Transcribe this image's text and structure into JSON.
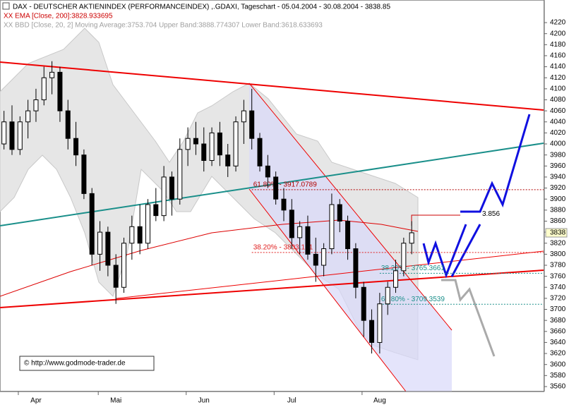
{
  "chart_data": {
    "type": "candlestick",
    "title": "DAX - DEUTSCHER AKTIENINDEX (PERFORMANCEINDEX) ,.GDAXI, Tageschart - 05.04.2004 - 30.08.2004 - 3838.85",
    "indicator_labels": [
      {
        "text": "XX EMA [Close, 200]:3828.933695",
        "color": "#cc0000"
      },
      {
        "text": "XX BBD [Close, 20, 2] Moving Average:3753.704 Upper Band:3888.774307 Lower Band:3618.633693",
        "color": "#a0a0a0"
      }
    ],
    "copyright": "© http://www.godmode-trader.de",
    "categories": [
      null,
      null,
      null,
      null,
      "Apr",
      null,
      null,
      null,
      null,
      null,
      null,
      null,
      null,
      null,
      "Mai",
      null,
      null,
      null,
      null,
      null,
      null,
      null,
      null,
      null,
      null,
      "Jun",
      null,
      null,
      null,
      null,
      null,
      null,
      null,
      null,
      null,
      null,
      "Jul",
      null,
      null,
      null,
      null,
      null,
      null,
      null,
      null,
      null,
      null,
      "Aug",
      null,
      null,
      null,
      null,
      null,
      null,
      null,
      null,
      null,
      null,
      null,
      null,
      null,
      null,
      null,
      null,
      null,
      null,
      null,
      null
    ],
    "series": [
      {
        "name": "DAX",
        "values": [
          [
            4000,
            4060,
            3990,
            4040
          ],
          [
            4040,
            4070,
            3980,
            3990
          ],
          [
            3990,
            4050,
            3980,
            4040
          ],
          [
            4040,
            4080,
            4010,
            4060
          ],
          [
            4060,
            4100,
            4040,
            4080
          ],
          [
            4080,
            4140,
            4070,
            4120
          ],
          [
            4120,
            4150,
            4090,
            4130
          ],
          [
            4130,
            4140,
            4040,
            4060
          ],
          [
            4060,
            4080,
            3990,
            4010
          ],
          [
            4010,
            4040,
            3960,
            3980
          ],
          [
            3980,
            3990,
            3900,
            3910
          ],
          [
            3910,
            3920,
            3780,
            3800
          ],
          [
            3800,
            3860,
            3770,
            3840
          ],
          [
            3840,
            3850,
            3760,
            3780
          ],
          [
            3780,
            3800,
            3710,
            3740
          ],
          [
            3740,
            3830,
            3730,
            3820
          ],
          [
            3820,
            3870,
            3790,
            3850
          ],
          [
            3850,
            3890,
            3800,
            3820
          ],
          [
            3820,
            3900,
            3810,
            3890
          ],
          [
            3890,
            3920,
            3860,
            3870
          ],
          [
            3870,
            3960,
            3860,
            3940
          ],
          [
            3940,
            3950,
            3870,
            3900
          ],
          [
            3900,
            4010,
            3890,
            3990
          ],
          [
            3990,
            4030,
            3960,
            4010
          ],
          [
            4010,
            4040,
            3980,
            4000
          ],
          [
            4000,
            4030,
            3950,
            3970
          ],
          [
            3970,
            4030,
            3960,
            4020
          ],
          [
            4020,
            4040,
            3960,
            3980
          ],
          [
            3980,
            4000,
            3940,
            3960
          ],
          [
            3960,
            4050,
            3950,
            4040
          ],
          [
            4040,
            4080,
            4000,
            4060
          ],
          [
            4060,
            4100,
            3990,
            4010
          ],
          [
            4010,
            4020,
            3950,
            3960
          ],
          [
            3960,
            3980,
            3920,
            3940
          ],
          [
            3940,
            3950,
            3890,
            3900
          ],
          [
            3900,
            3920,
            3860,
            3880
          ],
          [
            3880,
            3900,
            3810,
            3830
          ],
          [
            3830,
            3860,
            3800,
            3850
          ],
          [
            3850,
            3870,
            3790,
            3800
          ],
          [
            3800,
            3830,
            3750,
            3780
          ],
          [
            3780,
            3820,
            3760,
            3810
          ],
          [
            3810,
            3910,
            3800,
            3890
          ],
          [
            3890,
            3900,
            3840,
            3860
          ],
          [
            3860,
            3870,
            3790,
            3810
          ],
          [
            3810,
            3820,
            3720,
            3740
          ],
          [
            3740,
            3750,
            3650,
            3680
          ],
          [
            3680,
            3700,
            3620,
            3640
          ],
          [
            3640,
            3730,
            3620,
            3710
          ],
          [
            3710,
            3750,
            3690,
            3740
          ],
          [
            3740,
            3790,
            3730,
            3770
          ],
          [
            3770,
            3830,
            3760,
            3820
          ],
          [
            3820,
            3860,
            3800,
            3838.85
          ],
          null,
          null,
          null,
          null,
          null,
          null,
          null,
          null,
          null,
          null,
          null,
          null,
          null,
          null,
          null,
          null
        ]
      }
    ],
    "ylim": [
      3551,
      4261
    ],
    "yticks": [
      3560,
      3580,
      3600,
      3620,
      3640,
      3660,
      3680,
      3700,
      3720,
      3740,
      3760,
      3780,
      3800,
      3820,
      3840,
      3860,
      3880,
      3900,
      3920,
      3940,
      3960,
      3980,
      4000,
      4020,
      4040,
      4060,
      4080,
      4100,
      4120,
      4140,
      4160,
      4180,
      4200,
      4220
    ],
    "last_price": {
      "value": 3838.85,
      "label": "3838"
    },
    "levels": [
      {
        "label": "61.80% - 3917.0789",
        "value": 3917.0789,
        "color": "#b00000",
        "from": 31
      },
      {
        "label": "38.20% - 3803.131",
        "value": 3803.131,
        "color": "#e02020",
        "from": 31
      },
      {
        "label": "38.20% - 3765.3661",
        "value": 3765.3661,
        "color": "#1a8f8a",
        "from": 47
      },
      {
        "label": "61.80% - 3709.3539",
        "value": 3709.3539,
        "color": "#1a8f8a",
        "from": 47
      }
    ],
    "target": {
      "label": "3.856",
      "value": 3856
    }
  }
}
